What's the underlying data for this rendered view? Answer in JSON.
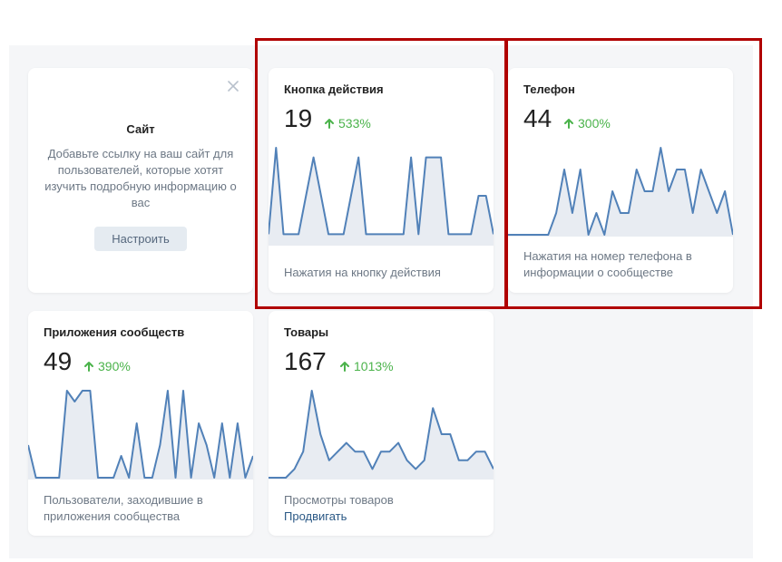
{
  "site_card": {
    "title": "Сайт",
    "description": "Добавьте ссылку на ваш сайт для пользователей, которые хотят изучить подробную информацию о вас",
    "button_label": "Настроить",
    "close_icon": "close-icon"
  },
  "cards": {
    "action_button": {
      "title": "Кнопка действия",
      "value": "19",
      "delta": "533%",
      "caption": "Нажатия на кнопку действия",
      "chart_data": {
        "type": "area",
        "values": [
          1,
          10,
          1,
          1,
          1,
          5,
          9,
          5,
          1,
          1,
          1,
          5,
          9,
          1,
          1,
          1,
          1,
          1,
          1,
          9,
          1,
          9,
          9,
          9,
          1,
          1,
          1,
          1,
          5,
          5,
          1
        ]
      }
    },
    "phone": {
      "title": "Телефон",
      "value": "44",
      "delta": "300%",
      "caption": "Нажатия на номер телефона в информации о сообществе",
      "chart_data": {
        "type": "area",
        "values": [
          0,
          0,
          0,
          0,
          0,
          0,
          1,
          3,
          1,
          3,
          0,
          1,
          0,
          2,
          1,
          1,
          3,
          2,
          2,
          4,
          2,
          3,
          3,
          1,
          3,
          2,
          1,
          2,
          0
        ]
      }
    },
    "community_apps": {
      "title": "Приложения сообществ",
      "value": "49",
      "delta": "390%",
      "caption": "Пользователи, заходившие в приложения сообщества",
      "chart_data": {
        "type": "area",
        "values": [
          3,
          0,
          0,
          0,
          0,
          8,
          7,
          8,
          8,
          0,
          0,
          0,
          2,
          0,
          5,
          0,
          0,
          3,
          8,
          0,
          8,
          0,
          5,
          3,
          0,
          5,
          0,
          5,
          0,
          2
        ]
      }
    },
    "goods": {
      "title": "Товары",
      "value": "167",
      "delta": "1013%",
      "caption": "Просмотры товаров",
      "link": "Продвигать",
      "chart_data": {
        "type": "area",
        "values": [
          0,
          0,
          0,
          1,
          3,
          10,
          5,
          2,
          3,
          4,
          3,
          3,
          1,
          3,
          3,
          4,
          2,
          1,
          2,
          8,
          5,
          5,
          2,
          2,
          3,
          3,
          1
        ]
      }
    }
  },
  "colors": {
    "accent_line": "#5181b8",
    "area_fill": "#e8ecf2",
    "positive": "#4bb34b",
    "highlight": "#b00000",
    "caption": "#6d7885",
    "link": "#2a5885"
  },
  "icons": {
    "delta": "arrow-up-icon"
  }
}
